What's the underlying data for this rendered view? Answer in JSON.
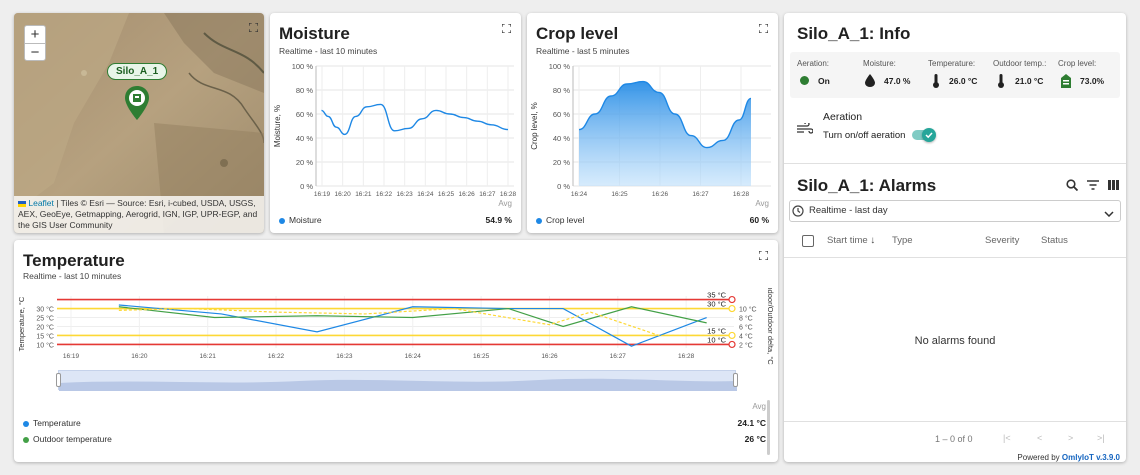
{
  "map": {
    "zoom_in": "+",
    "zoom_out": "−",
    "marker_label": "Silo_A_1",
    "attribution_link": "Leaflet",
    "attribution_line1": " | Tiles © Esri — Source: Esri, i-cubed, USDA, USGS,",
    "attribution_line2": "AEX, GeoEye, Getmapping, Aerogrid, IGN, IGP, UPR-EGP, and",
    "attribution_line3": "the GIS User Community"
  },
  "moisture": {
    "title": "Moisture",
    "subtitle": "Realtime - last 10 minutes",
    "avg_label": "Avg",
    "legend": "Moisture",
    "avg_value": "54.9 %",
    "color": "#1e88e5"
  },
  "crop": {
    "title": "Crop level",
    "subtitle": "Realtime - last 5 minutes",
    "avg_label": "Avg",
    "legend": "Crop level",
    "avg_value": "60 %",
    "color": "#1e88e5"
  },
  "temperature": {
    "title": "Temperature",
    "subtitle": "Realtime - last 10 minutes",
    "avg_label": "Avg",
    "legend1": "Temperature",
    "value1": "24.1 °C",
    "legend2": "Outdoor temperature",
    "value2": "26 °C"
  },
  "info": {
    "title": "Silo_A_1: Info",
    "aeration_label": "Aeration:",
    "aeration_value": "On",
    "moisture_label": "Moisture:",
    "moisture_value": "47.0 %",
    "temperature_label": "Temperature:",
    "temperature_value": "26.0 °C",
    "outdoor_label": "Outdoor temp.:",
    "outdoor_value": "21.0 °C",
    "crop_label": "Crop level:",
    "crop_value": "73.0%",
    "aeration_title": "Aeration",
    "aeration_toggle_label": "Turn on/off aeration",
    "aeration_toggle_on": true,
    "accent": "#26a69a"
  },
  "alarms": {
    "title": "Silo_A_1: Alarms",
    "timewindow": "Realtime - last day",
    "col_start": "Start time",
    "col_type": "Type",
    "col_severity": "Severity",
    "col_status": "Status",
    "empty": "No alarms found",
    "pagination": "1 – 0 of 0"
  },
  "footer": {
    "powered_prefix": "Powered by ",
    "powered_link": "OmlyIoT v.3.9.0"
  },
  "chart_data": [
    {
      "type": "line",
      "title": "Moisture",
      "ylabel": "Moisture, %",
      "ylim": [
        0,
        100
      ],
      "yticks": [
        "0 %",
        "20 %",
        "40 %",
        "60 %",
        "80 %",
        "100 %"
      ],
      "xticks": [
        "16:19",
        "16:20",
        "16:21",
        "16:22",
        "16:23",
        "16:24",
        "16:25",
        "16:26",
        "16:27",
        "16:28"
      ],
      "series": [
        {
          "name": "Moisture",
          "x": [
            16.18,
            16.3,
            16.45,
            16.6,
            16.8,
            17.0,
            17.25,
            17.5,
            17.75,
            18.0,
            18.25,
            18.5,
            18.75,
            19.0,
            19.25,
            19.55
          ],
          "values": [
            63,
            58,
            49,
            43,
            58,
            66,
            68,
            46,
            48,
            56,
            63,
            60,
            57,
            54,
            51,
            47
          ]
        }
      ]
    },
    {
      "type": "area",
      "title": "Crop level",
      "ylabel": "Crop level, %",
      "ylim": [
        0,
        100
      ],
      "yticks": [
        "0 %",
        "20 %",
        "40 %",
        "60 %",
        "80 %",
        "100 %"
      ],
      "xticks": [
        "16:24",
        "16:25",
        "16:26",
        "16:27",
        "16:28"
      ],
      "series": [
        {
          "name": "Crop level",
          "x": [
            0,
            0.4,
            0.8,
            1.2,
            1.6,
            2.0,
            2.4,
            2.8,
            3.2,
            3.6,
            4.0,
            4.3
          ],
          "values": [
            47,
            60,
            75,
            85,
            87,
            78,
            60,
            42,
            32,
            38,
            55,
            73
          ]
        }
      ]
    },
    {
      "type": "line",
      "title": "Temperature",
      "ylabel": "Temperature, °C",
      "y2label": "Indoor/Outdoor delta, °C",
      "ylim": [
        8,
        37
      ],
      "yticks": [
        "10 °C",
        "15 °C",
        "20 °C",
        "25 °C",
        "30 °C"
      ],
      "y2ticks": [
        "2 °C",
        "4 °C",
        "6 °C",
        "8 °C",
        "10 °C"
      ],
      "xticks": [
        "16:19",
        "16:20",
        "16:21",
        "16:22",
        "16:23",
        "16:24",
        "16:25",
        "16:26",
        "16:27",
        "16:28"
      ],
      "thresholds": [
        {
          "value": 35,
          "label": "35 °C",
          "color": "#e53935"
        },
        {
          "value": 30,
          "label": "30 °C",
          "color": "#fdd835"
        },
        {
          "value": 15,
          "label": "15 °C",
          "color": "#fdd835"
        },
        {
          "value": 10,
          "label": "10 °C",
          "color": "#e53935"
        }
      ],
      "series": [
        {
          "name": "Temperature",
          "x": [
            0.7,
            2.2,
            3.6,
            5.0,
            6.4,
            7.2,
            8.2,
            9.3
          ],
          "values": [
            32,
            27,
            17,
            31,
            30,
            30,
            9,
            25
          ]
        },
        {
          "name": "Outdoor temperature",
          "x": [
            0.7,
            2.1,
            3.6,
            5.0,
            6.4,
            7.2,
            8.2,
            9.3
          ],
          "values": [
            31,
            25,
            26,
            25,
            30,
            20,
            31,
            22
          ]
        },
        {
          "name": "Indoor/Outdoor delta",
          "x": [
            0.7,
            1.7,
            3.0,
            4.3,
            5.6,
            7.0,
            7.6,
            8.6,
            9.3
          ],
          "values": [
            29,
            30,
            28,
            27,
            30,
            21,
            28,
            15,
            15
          ]
        }
      ]
    }
  ]
}
